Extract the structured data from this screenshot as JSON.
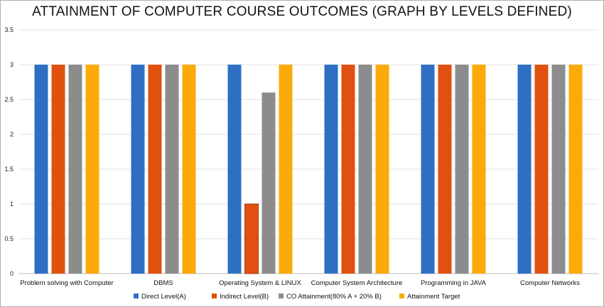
{
  "chart_data": {
    "type": "bar",
    "title": "ATTAINMENT OF COMPUTER COURSE OUTCOMES (GRAPH BY LEVELS DEFINED)",
    "xlabel": "",
    "ylabel": "",
    "ylim": [
      0,
      3.5
    ],
    "yticks": [
      "0",
      "0.5",
      "1",
      "1.5",
      "2",
      "2.5",
      "3",
      "3.5"
    ],
    "grid": true,
    "legend_position": "bottom",
    "categories": [
      "Problem solving with Computer",
      "DBMS",
      "Operating System & LINUX",
      "Computer System Architecture",
      "Programming in JAVA",
      "Computer Networks"
    ],
    "series": [
      {
        "name": "Direct Level(A)",
        "color": "#2e6fc4",
        "values": [
          3,
          3,
          3,
          3,
          3,
          3
        ]
      },
      {
        "name": "Indirect Level(B)",
        "color": "#e0510f",
        "values": [
          3,
          3,
          1,
          3,
          3,
          3
        ]
      },
      {
        "name": "CO Attainment(80% A + 20% B)",
        "color": "#8c8c8c",
        "values": [
          3,
          3,
          2.6,
          3,
          3,
          3
        ]
      },
      {
        "name": "Attainment Target",
        "color": "#fca90a",
        "values": [
          3,
          3,
          3,
          3,
          3,
          3
        ]
      }
    ]
  }
}
